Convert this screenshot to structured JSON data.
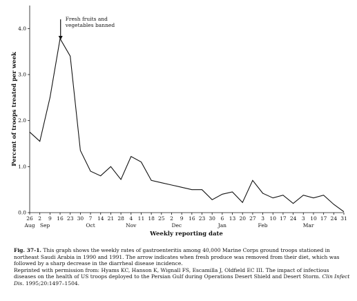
{
  "chart_data": {
    "type": "line",
    "ylabel": "Percent of troops treated per week",
    "xlabel": "Weekly reporting date",
    "ylim": [
      0,
      4.5
    ],
    "yticks": [
      0.0,
      1.0,
      2.0,
      3.0,
      4.0
    ],
    "ytick_labels": [
      "0.0",
      "1.0",
      "2.0",
      "3.0",
      "4.0"
    ],
    "x_tick_labels": [
      "26",
      "2",
      "9",
      "16",
      "23",
      "30",
      "7",
      "14",
      "21",
      "28",
      "4",
      "11",
      "18",
      "25",
      "2",
      "9",
      "16",
      "23",
      "30",
      "6",
      "13",
      "20",
      "27",
      "3",
      "10",
      "17",
      "24",
      "3",
      "10",
      "17",
      "24",
      "31"
    ],
    "month_labels": [
      {
        "label": "Aug",
        "index": 0
      },
      {
        "label": "Sep",
        "index": 1.5
      },
      {
        "label": "Oct",
        "index": 6
      },
      {
        "label": "Nov",
        "index": 10
      },
      {
        "label": "Dec",
        "index": 14.5
      },
      {
        "label": "Jan",
        "index": 19
      },
      {
        "label": "Feb",
        "index": 23
      },
      {
        "label": "Mar",
        "index": 27.5
      }
    ],
    "values": [
      1.75,
      1.55,
      2.5,
      3.78,
      3.4,
      1.35,
      0.9,
      0.8,
      1.0,
      0.72,
      1.22,
      1.1,
      0.7,
      0.65,
      0.6,
      0.55,
      0.5,
      0.5,
      0.28,
      0.4,
      0.45,
      0.22,
      0.7,
      0.42,
      0.32,
      0.38,
      0.2,
      0.38,
      0.32,
      0.38,
      0.18,
      0.02
    ],
    "grid": false,
    "annotation": {
      "text_lines": [
        "Fresh fruits and",
        "vegetables banned"
      ],
      "index": 4,
      "arrow_from": 4.2,
      "arrow_to": 3.75
    }
  },
  "caption": {
    "fig_label": "Fig. 37-1.",
    "text": " This graph shows the weekly rates of gastroenteritis among 40,000 Marine Corps ground troops stationed in northeast Saudi Arabia in 1990 and 1991. The arrow indicates when fresh produce was removed from their diet, which was followed by a sharp decrease in the diarrheal disease incidence.",
    "reprint": "Reprinted with permission from: Hyams KC, Hanson K, Wignall FS, Escamilla J, Oldfield EC III. The impact of infectious diseases on the health of US troops deployed to the Persian Gulf during Operations Desert Shield and Desert Storm.",
    "journal": "Clin Infect Dis.",
    "citation": " 1995;20:1497–1504."
  }
}
